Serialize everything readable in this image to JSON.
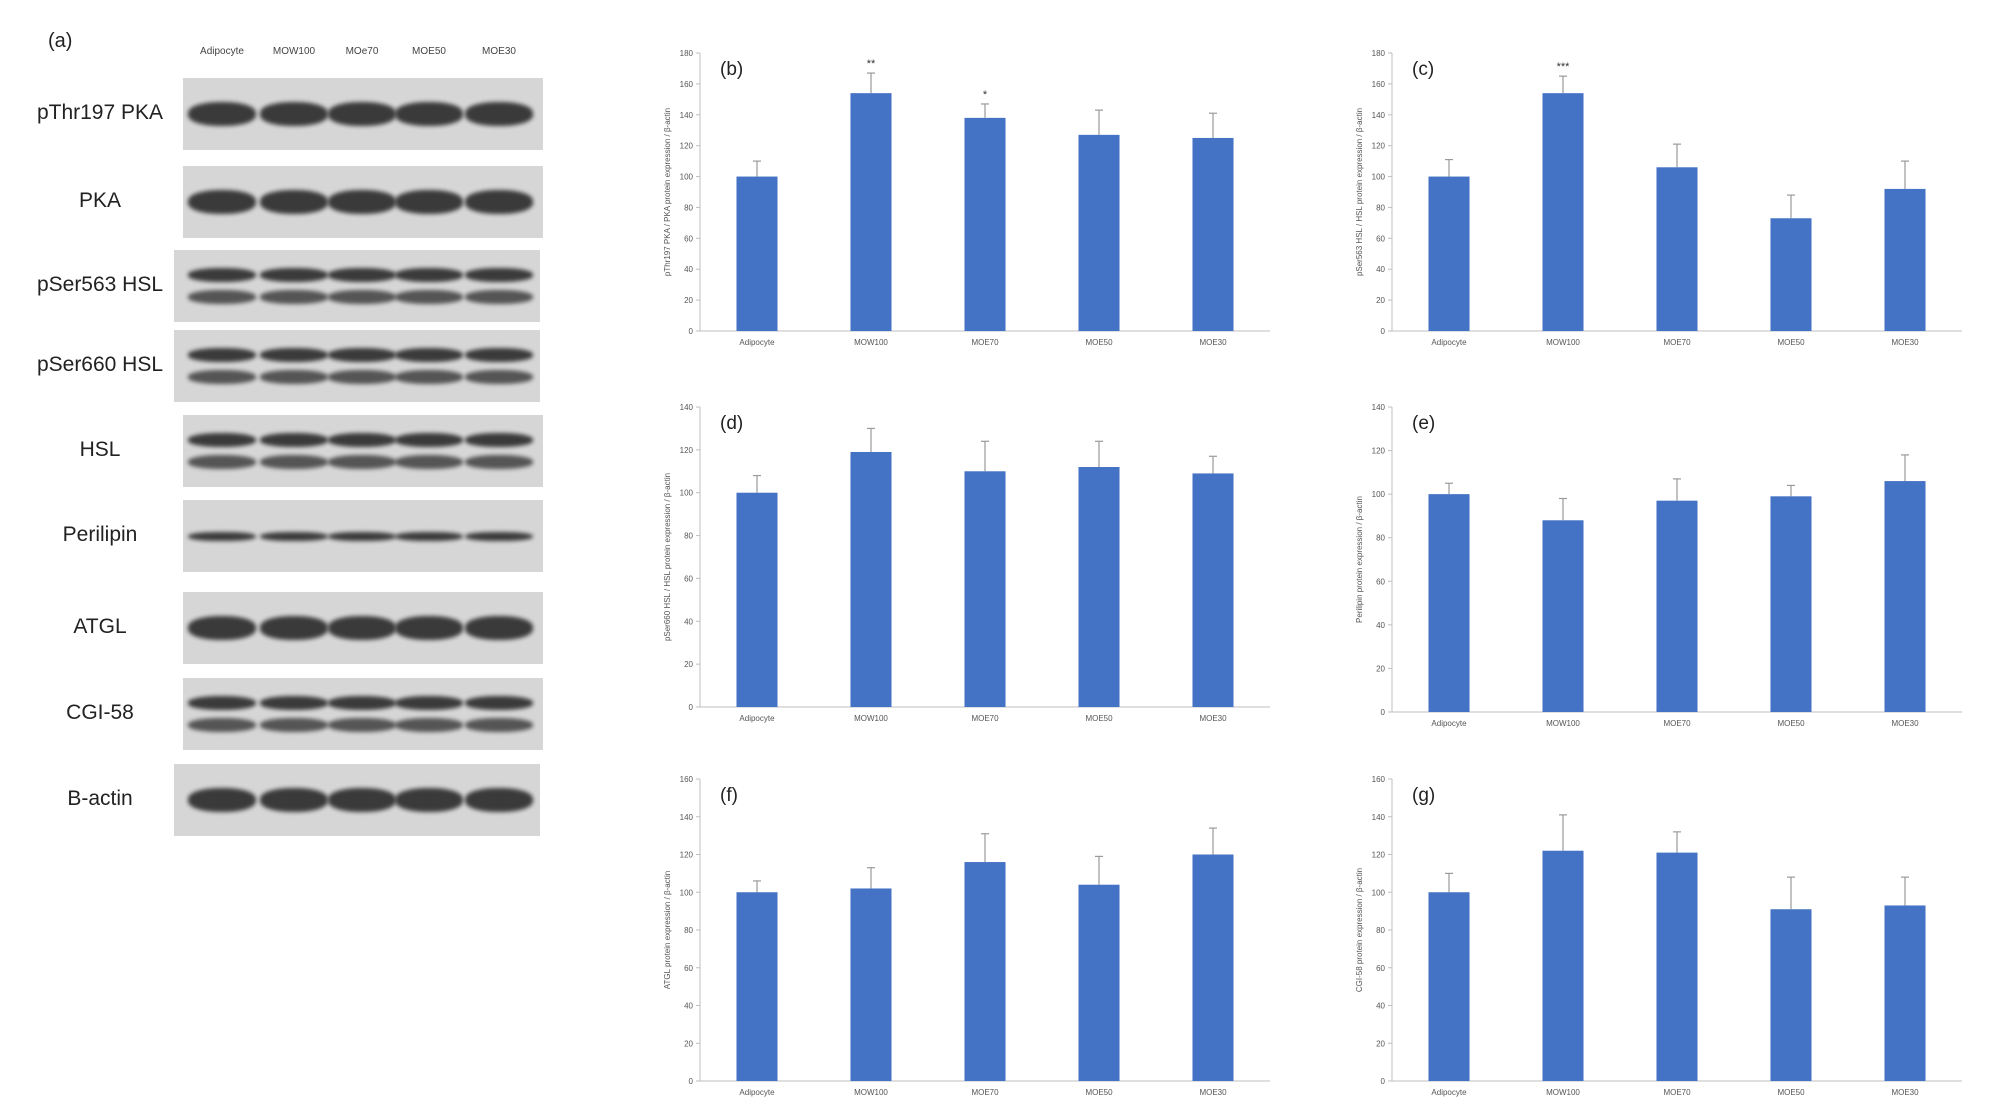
{
  "blot": {
    "panel_label": "(a)",
    "lanes": [
      "Adipocyte",
      "MOW100",
      "MOe70",
      "MOE50",
      "MOE30"
    ],
    "rows": [
      {
        "label": "pThr197 PKA",
        "bands": 1
      },
      {
        "label": "PKA",
        "bands": 1
      },
      {
        "label": "pSer563 HSL",
        "bands": 2
      },
      {
        "label": "pSer660 HSL",
        "bands": 2
      },
      {
        "label": "HSL",
        "bands": 2
      },
      {
        "label": "Perilipin",
        "bands": 1
      },
      {
        "label": "ATGL",
        "bands": 1
      },
      {
        "label": "CGI-58",
        "bands": 2
      },
      {
        "label": "B-actin",
        "bands": 1
      }
    ]
  },
  "chart_data": [
    {
      "panel": "(b)",
      "type": "bar",
      "categories": [
        "Adipocyte",
        "MOW100",
        "MOE70",
        "MOE50",
        "MOE30"
      ],
      "values": [
        100,
        154,
        138,
        127,
        125
      ],
      "errors": [
        10,
        13,
        9,
        16,
        16
      ],
      "significance": [
        "",
        "**",
        "*",
        "",
        ""
      ],
      "ylabel": "pThr197 PKA / PKA protein expression / β-actin",
      "ylim": [
        0,
        180
      ],
      "yticks": [
        0,
        20,
        40,
        60,
        80,
        100,
        120,
        140,
        160,
        180
      ],
      "color": "#4472C4"
    },
    {
      "panel": "(c)",
      "type": "bar",
      "categories": [
        "Adipocyte",
        "MOW100",
        "MOE70",
        "MOE50",
        "MOE30"
      ],
      "values": [
        100,
        154,
        106,
        73,
        92
      ],
      "errors": [
        11,
        11,
        15,
        15,
        18
      ],
      "significance": [
        "",
        "***",
        "",
        "",
        ""
      ],
      "ylabel": "pSer563 HSL / HSL protein expression / β-actin",
      "ylim": [
        0,
        180
      ],
      "yticks": [
        0,
        20,
        40,
        60,
        80,
        100,
        120,
        140,
        160,
        180
      ],
      "color": "#4472C4"
    },
    {
      "panel": "(d)",
      "type": "bar",
      "categories": [
        "Adipocyte",
        "MOW100",
        "MOE70",
        "MOE50",
        "MOE30"
      ],
      "values": [
        100,
        119,
        110,
        112,
        109
      ],
      "errors": [
        8,
        11,
        14,
        12,
        8
      ],
      "significance": [
        "",
        "",
        "",
        "",
        ""
      ],
      "ylabel": "pSer660 HSL / HSL protein expression / β-actin",
      "ylim": [
        0,
        140
      ],
      "yticks": [
        0,
        20,
        40,
        60,
        80,
        100,
        120,
        140
      ],
      "color": "#4472C4"
    },
    {
      "panel": "(e)",
      "type": "bar",
      "categories": [
        "Adipocyte",
        "MOW100",
        "MOE70",
        "MOE50",
        "MOE30"
      ],
      "values": [
        100,
        88,
        97,
        99,
        106
      ],
      "errors": [
        5,
        10,
        10,
        5,
        12
      ],
      "significance": [
        "",
        "",
        "",
        "",
        ""
      ],
      "ylabel": "Perilipin protein expression / β-actin",
      "ylim": [
        0,
        140
      ],
      "yticks": [
        0,
        20,
        40,
        60,
        80,
        100,
        120,
        140
      ],
      "color": "#4472C4"
    },
    {
      "panel": "(f)",
      "type": "bar",
      "categories": [
        "Adipocyte",
        "MOW100",
        "MOE70",
        "MOE50",
        "MOE30"
      ],
      "values": [
        100,
        102,
        116,
        104,
        120
      ],
      "errors": [
        6,
        11,
        15,
        15,
        14
      ],
      "significance": [
        "",
        "",
        "",
        "",
        ""
      ],
      "ylabel": "ATGL protein expression / β-actin",
      "ylim": [
        0,
        160
      ],
      "yticks": [
        0,
        20,
        40,
        60,
        80,
        100,
        120,
        140,
        160
      ],
      "color": "#4472C4"
    },
    {
      "panel": "(g)",
      "type": "bar",
      "categories": [
        "Adipocyte",
        "MOW100",
        "MOE70",
        "MOE50",
        "MOE30"
      ],
      "values": [
        100,
        122,
        121,
        91,
        93
      ],
      "errors": [
        10,
        19,
        11,
        17,
        15
      ],
      "significance": [
        "",
        "",
        "",
        "",
        ""
      ],
      "ylabel": "CGI-58 protein expression / β-actin",
      "ylim": [
        0,
        160
      ],
      "yticks": [
        0,
        20,
        40,
        60,
        80,
        100,
        120,
        140,
        160
      ],
      "color": "#4472C4"
    }
  ]
}
